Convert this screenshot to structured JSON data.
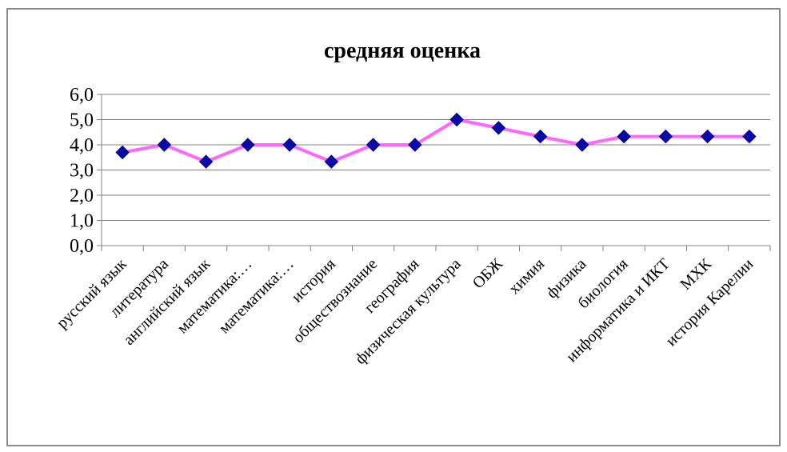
{
  "chart_data": {
    "type": "line",
    "title": "средняя оценка",
    "xlabel": "",
    "ylabel": "",
    "categories": [
      "русский язык",
      "литература",
      "английский язык",
      "математика:…",
      "математика:…",
      "история",
      "обществознание",
      "география",
      "физическая культура",
      "ОБЖ",
      "химия",
      "физика",
      "биология",
      "информатика и ИКТ",
      "МХК",
      "история Карелии"
    ],
    "series": [
      {
        "values": [
          3.7,
          4.0,
          3.33,
          4.0,
          4.0,
          3.33,
          4.0,
          4.0,
          5.0,
          4.67,
          4.33,
          4.0,
          4.33,
          4.33,
          4.33,
          4.33
        ]
      }
    ],
    "yticks": [
      "0,0",
      "1,0",
      "2,0",
      "3,0",
      "4,0",
      "5,0",
      "6,0"
    ],
    "ylim": [
      0,
      6
    ],
    "grid": true,
    "legend": "none",
    "colors": {
      "line": "#ff66ff",
      "marker": "#0a0aa8",
      "grid": "#808080",
      "axis": "#808080"
    }
  }
}
